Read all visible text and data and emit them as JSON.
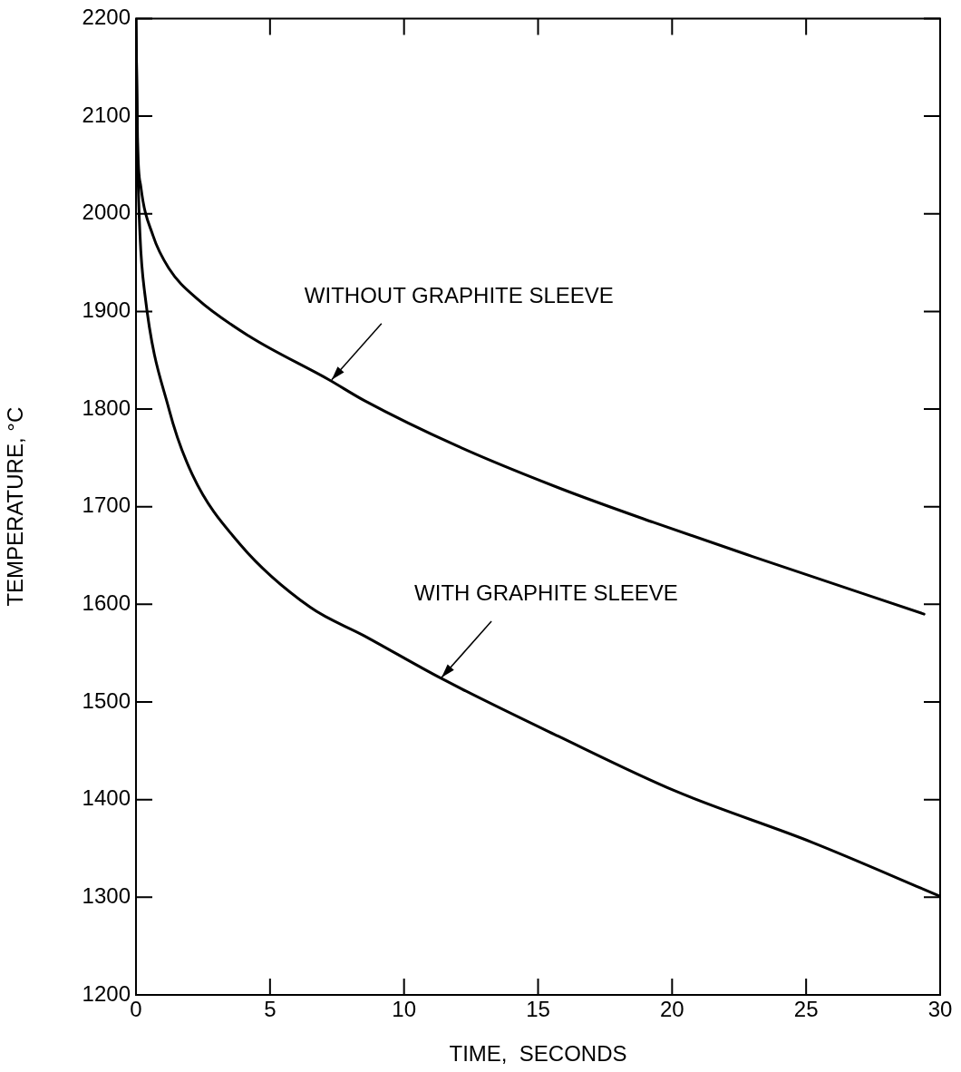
{
  "chart_data": {
    "type": "line",
    "xlabel": "TIME,  SECONDS",
    "ylabel": "TEMPERATURE, °C",
    "xlim": [
      0,
      30
    ],
    "ylim": [
      1200,
      2200
    ],
    "xticks": [
      0,
      5,
      10,
      15,
      20,
      25,
      30
    ],
    "yticks": [
      1200,
      1300,
      1400,
      1500,
      1600,
      1700,
      1800,
      1900,
      2000,
      2100,
      2200
    ],
    "marker": "none",
    "grid": false,
    "series": [
      {
        "color": "#000000",
        "x": [
          0,
          0.06,
          0.18,
          0.63,
          1.23,
          2.28,
          4.2,
          7.2,
          8.5,
          12.0,
          15.8,
          19.3,
          23.0,
          29.4
        ],
        "values": [
          2200,
          2073,
          2028,
          1978,
          1944,
          1913,
          1875,
          1830,
          1809,
          1762,
          1719,
          1684,
          1649,
          1590
        ]
      },
      {
        "color": "#000000",
        "x": [
          0,
          0.06,
          0.15,
          0.33,
          1.23,
          2.1,
          3.9,
          6.5,
          8.5,
          11.4,
          15.75,
          20.1,
          25.25,
          30
        ],
        "values": [
          2200,
          2060,
          1978,
          1918,
          1800,
          1733,
          1661,
          1597,
          1568,
          1524,
          1465,
          1409,
          1356,
          1301
        ]
      }
    ],
    "annotations": [
      {
        "text": "WITHOUT GRAPHITE SLEEVE",
        "x": 7.3,
        "y": 1830
      },
      {
        "text": "WITH GRAPHITE SLEEVE",
        "x": 11.4,
        "y": 1525
      }
    ]
  }
}
